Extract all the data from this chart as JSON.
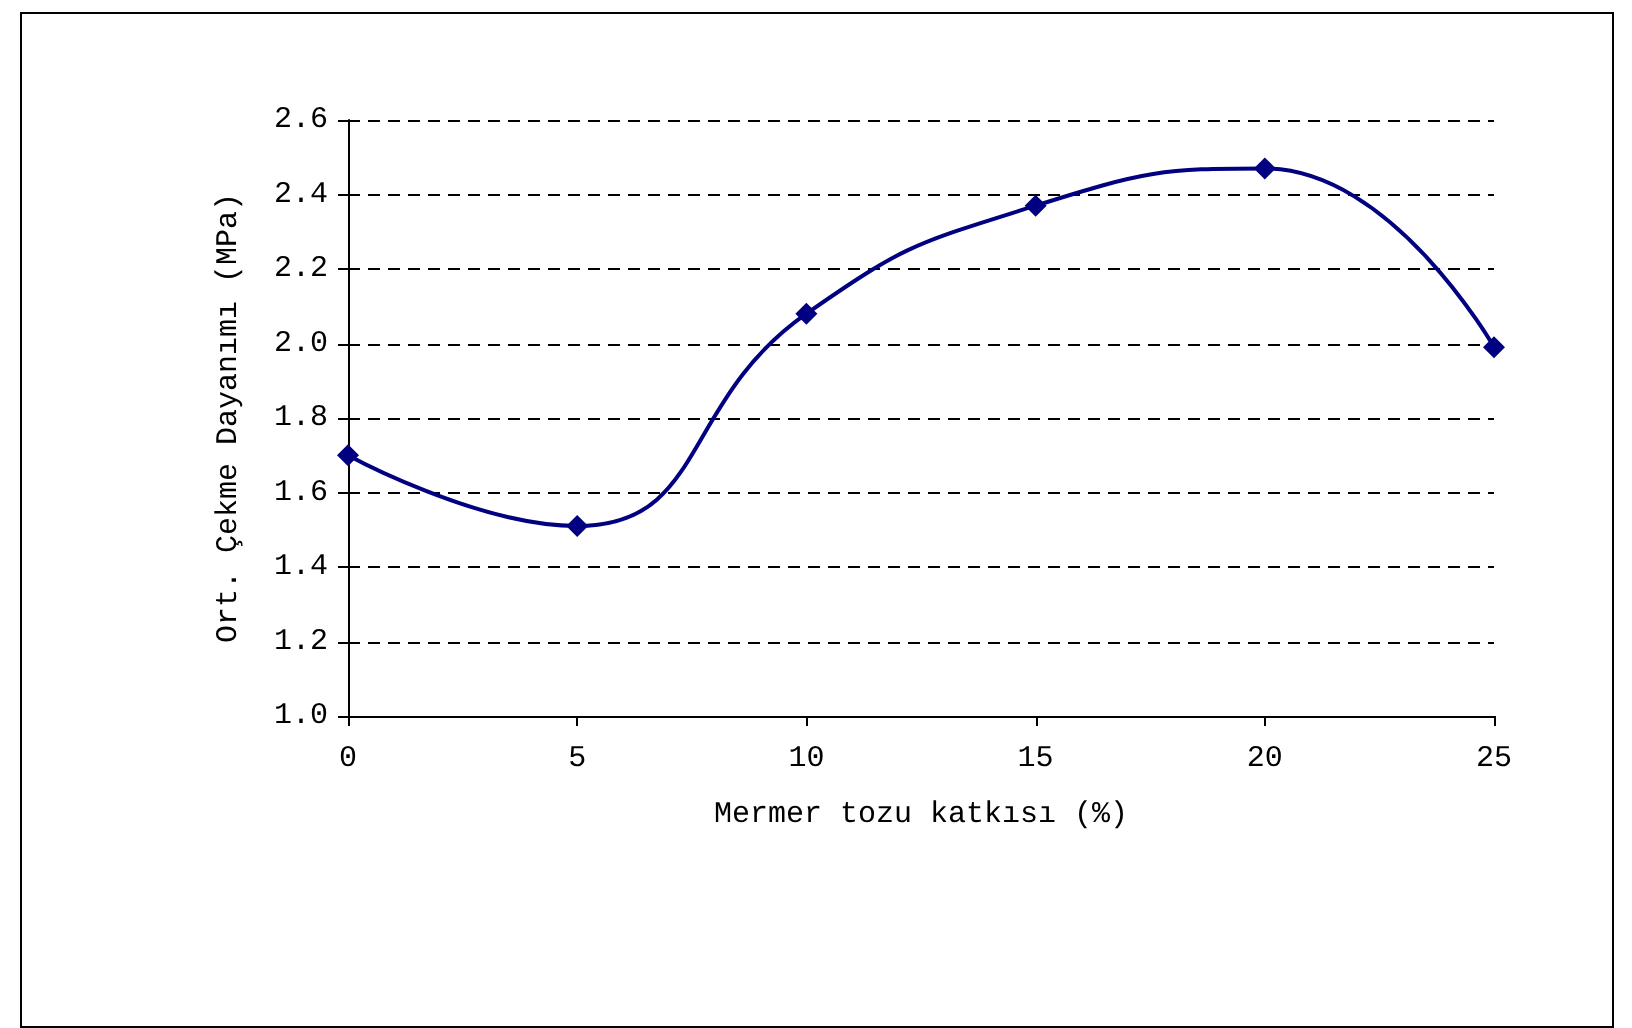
{
  "chart_data": {
    "type": "line",
    "xlabel": "Mermer tozu katkısı (%)",
    "ylabel": "Ort. Çekme Dayanımı (MPa)",
    "x": [
      0,
      5,
      10,
      15,
      20,
      25
    ],
    "series": [
      {
        "color": "#000080",
        "values": [
          1.7,
          1.51,
          2.08,
          2.37,
          2.47,
          1.99
        ]
      }
    ],
    "xlim": [
      0,
      25
    ],
    "xticks": [
      0,
      5,
      10,
      15,
      20,
      25
    ],
    "ylim": [
      1.0,
      2.6
    ],
    "yticks": [
      {
        "value": 1.0,
        "label": "1.0"
      },
      {
        "value": 1.2,
        "label": "1.2"
      },
      {
        "value": 1.4,
        "label": "1.4"
      },
      {
        "value": 1.6,
        "label": "1.6"
      },
      {
        "value": 1.8,
        "label": "1.8"
      },
      {
        "value": 2.0,
        "label": "2.0"
      },
      {
        "value": 2.2,
        "label": "2.2"
      },
      {
        "value": 2.4,
        "label": "2.4"
      },
      {
        "value": 2.6,
        "label": "2.6"
      }
    ],
    "grid": "y",
    "marker": "diamond",
    "line_style": "solid"
  }
}
